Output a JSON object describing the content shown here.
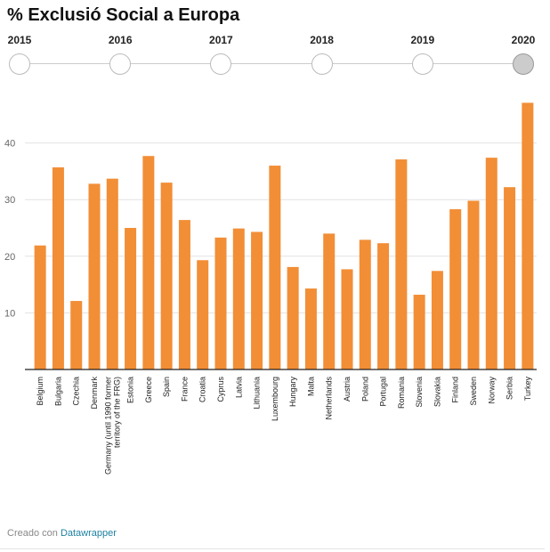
{
  "title": "% Exclusió Social a Europa",
  "timeline": {
    "years": [
      "2015",
      "2016",
      "2017",
      "2018",
      "2019",
      "2020"
    ],
    "selected": "2020"
  },
  "chart_data": {
    "type": "bar",
    "categories": [
      "Belgium",
      "Bulgaria",
      "Czechia",
      "Denmark",
      "Germany (until 1990 former territory of the FRG)",
      "Estonia",
      "Greece",
      "Spain",
      "France",
      "Croatia",
      "Cyprus",
      "Latvia",
      "Lithuania",
      "Luxembourg",
      "Hungary",
      "Malta",
      "Netherlands",
      "Austria",
      "Poland",
      "Portugal",
      "Romania",
      "Slovenia",
      "Slovakia",
      "Finland",
      "Sweden",
      "Norway",
      "Serbia",
      "Turkey"
    ],
    "category_lines": [
      [
        "Belgium"
      ],
      [
        "Bulgaria"
      ],
      [
        "Czechia"
      ],
      [
        "Denmark"
      ],
      [
        "Germany (until 1990 former",
        "territory of the FRG)"
      ],
      [
        "Estonia"
      ],
      [
        "Greece"
      ],
      [
        "Spain"
      ],
      [
        "France"
      ],
      [
        "Croatia"
      ],
      [
        "Cyprus"
      ],
      [
        "Latvia"
      ],
      [
        "Lithuania"
      ],
      [
        "Luxembourg"
      ],
      [
        "Hungary"
      ],
      [
        "Malta"
      ],
      [
        "Netherlands"
      ],
      [
        "Austria"
      ],
      [
        "Poland"
      ],
      [
        "Portugal"
      ],
      [
        "Romania"
      ],
      [
        "Slovenia"
      ],
      [
        "Slovakia"
      ],
      [
        "Finland"
      ],
      [
        "Sweden"
      ],
      [
        "Norway"
      ],
      [
        "Serbia"
      ],
      [
        "Turkey"
      ]
    ],
    "values": [
      21.9,
      35.7,
      12.1,
      32.8,
      33.7,
      25.0,
      37.7,
      33.0,
      26.4,
      19.3,
      23.3,
      24.9,
      24.3,
      36.0,
      18.1,
      14.3,
      24.0,
      17.7,
      22.9,
      22.3,
      37.1,
      13.2,
      17.4,
      28.3,
      29.8,
      37.4,
      32.2,
      47.1
    ],
    "ylim": [
      0,
      48
    ],
    "yticks": [
      10,
      20,
      30,
      40
    ],
    "grid": true,
    "bar_color": "#f28e36"
  },
  "footer": {
    "prefix": "Creado con",
    "link": "Datawrapper"
  }
}
